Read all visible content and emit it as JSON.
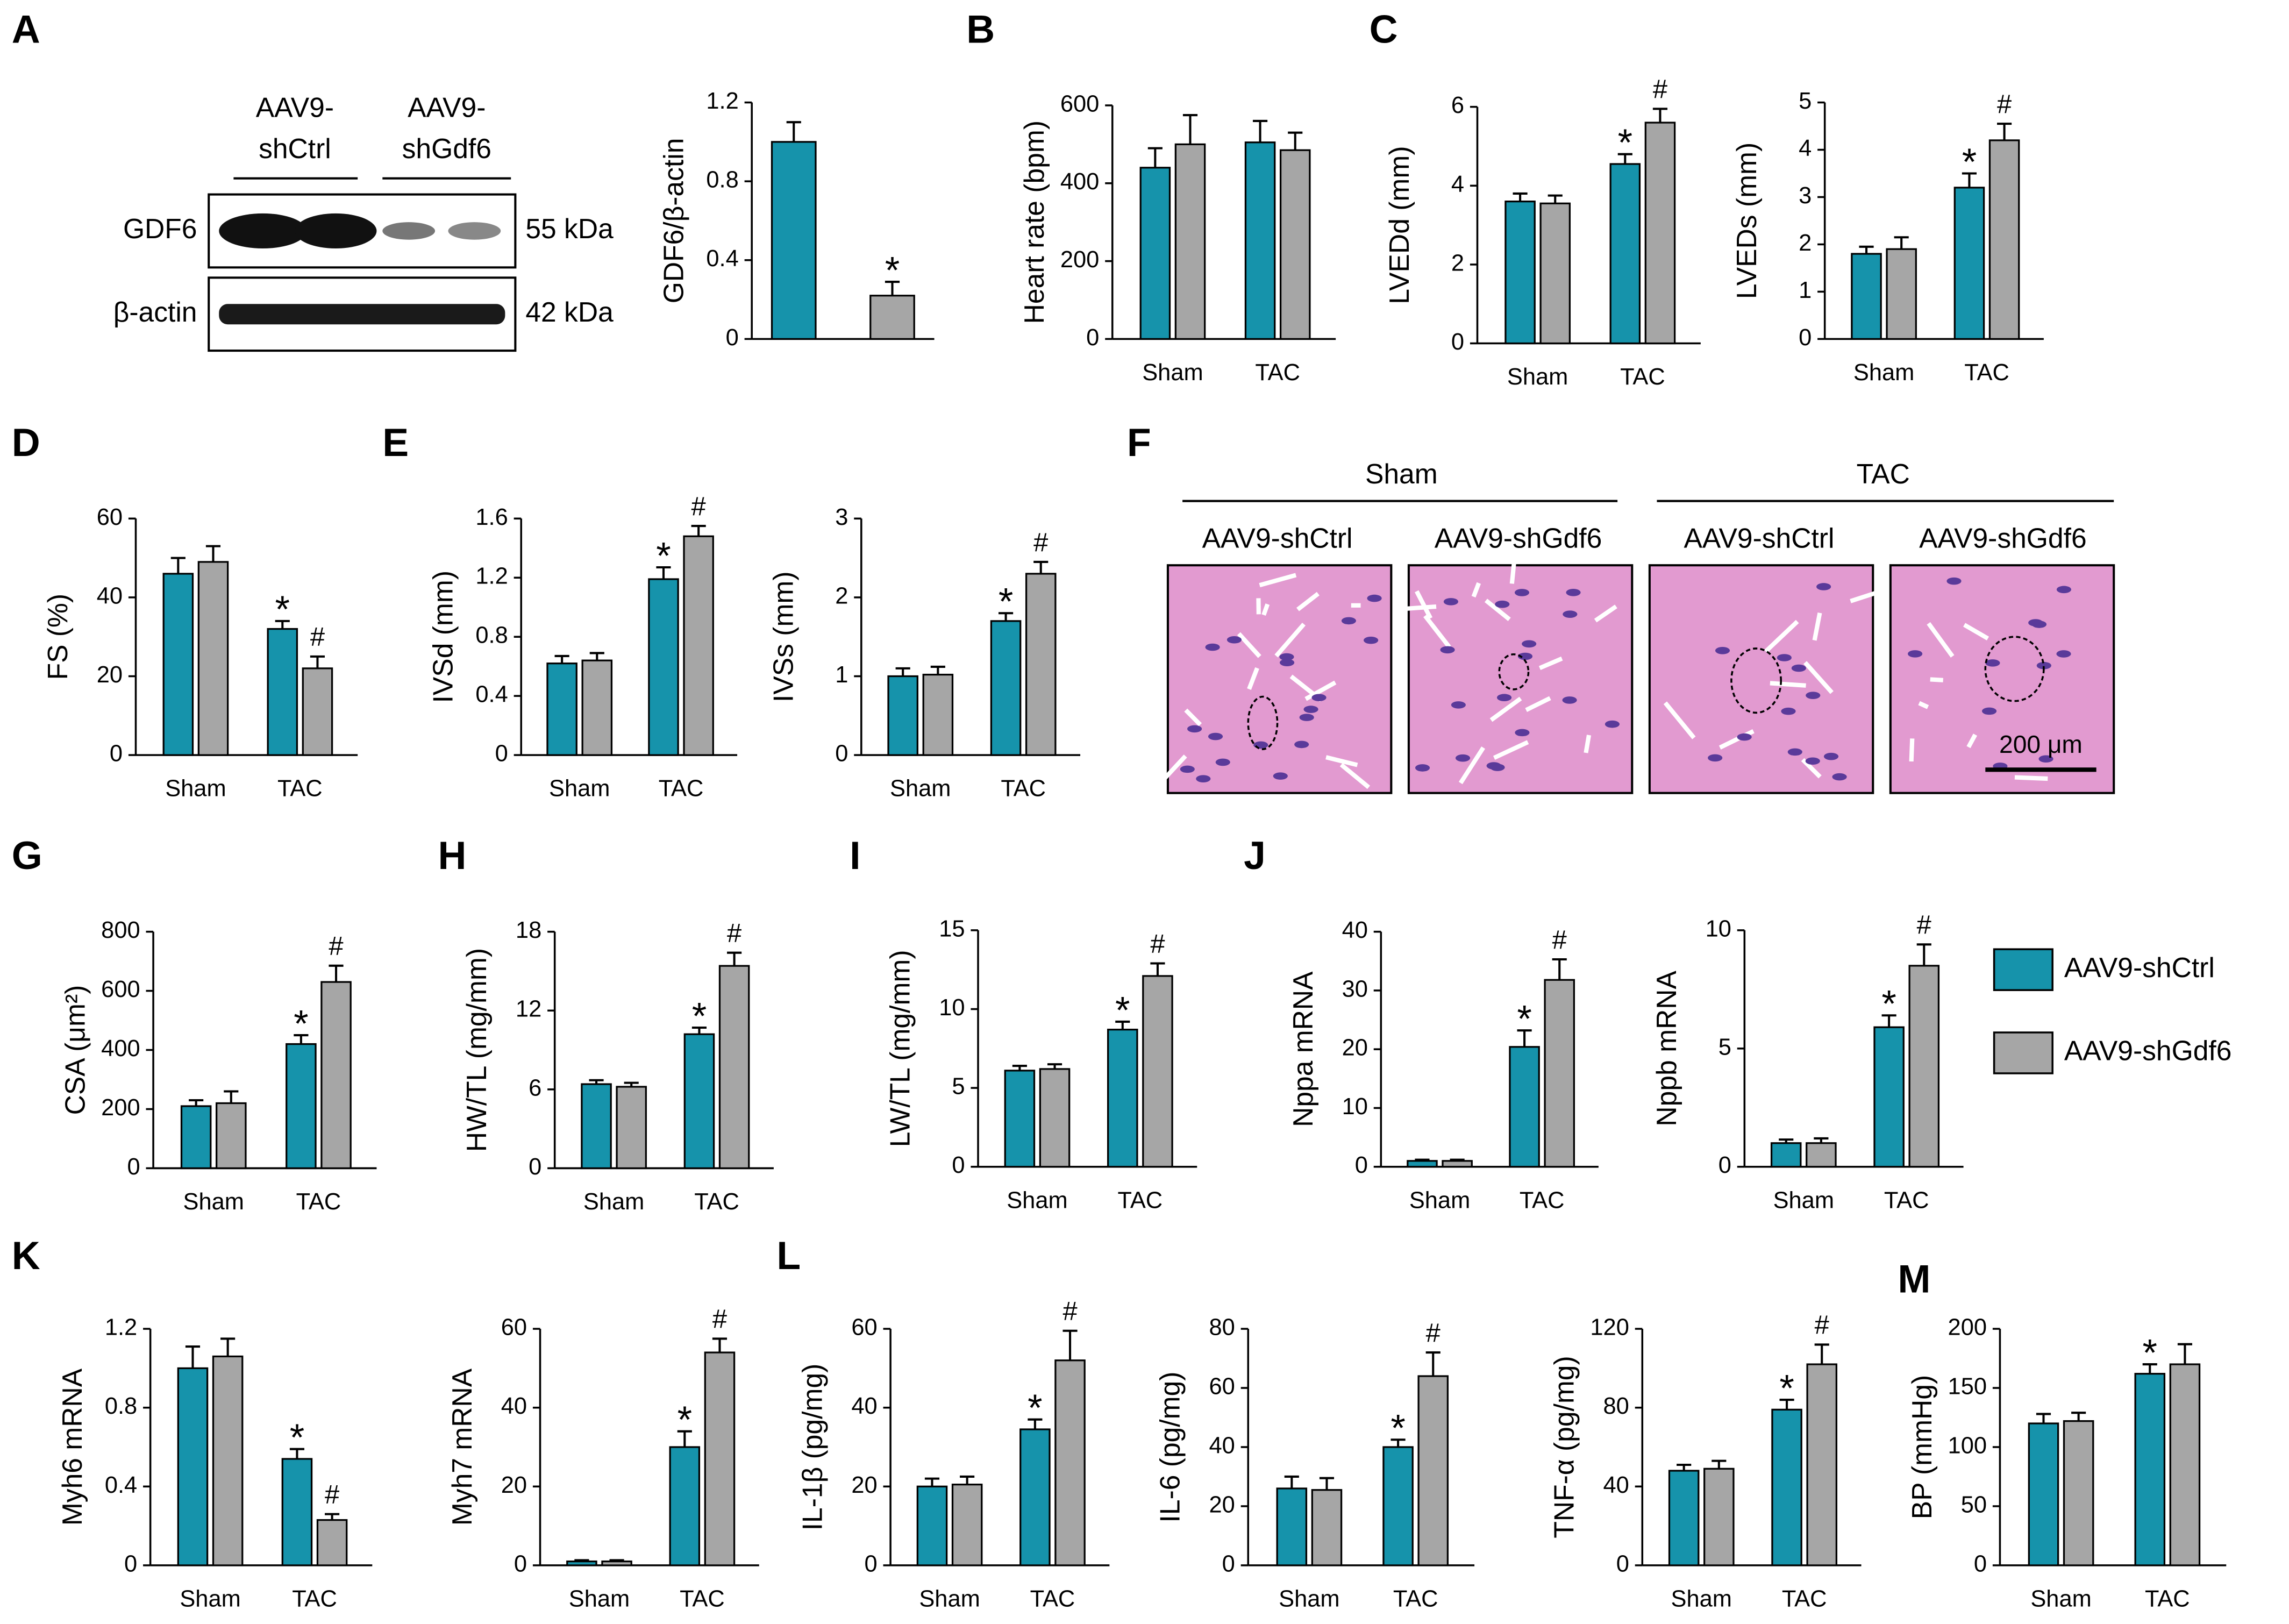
{
  "panels": [
    "A",
    "B",
    "C",
    "D",
    "E",
    "F",
    "G",
    "H",
    "I",
    "J",
    "K",
    "L",
    "M"
  ],
  "legend": [
    {
      "name": "AAV9-shCtrl",
      "color": "#1693ab"
    },
    {
      "name": "AAV9-shGdf6",
      "color": "#a6a6a6"
    }
  ],
  "blot": {
    "groups": [
      [
        "AAV9-",
        "shCtrl"
      ],
      [
        "AAV9-",
        "shGdf6"
      ]
    ],
    "rows": [
      {
        "protein": "GDF6",
        "size": "55 kDa"
      },
      {
        "protein": "β-actin",
        "size": "42 kDa"
      }
    ]
  },
  "histology": {
    "groups": [
      "Sham",
      "TAC"
    ],
    "images": [
      "AAV9-shCtrl",
      "AAV9-shGdf6",
      "AAV9-shCtrl",
      "AAV9-shGdf6"
    ],
    "scale_bar": "200 μm"
  },
  "chart_data": [
    {
      "type": "bar",
      "ylabel": "GDF6/β-actin",
      "categories": [
        null
      ],
      "ylim": [
        0,
        1.2
      ],
      "yticks": [
        0,
        0.4,
        0.8,
        1.2
      ],
      "series": [
        {
          "values": [
            1.0
          ],
          "errors": [
            0.1
          ],
          "annotations": [
            null
          ]
        },
        {
          "values": [
            0.22
          ],
          "errors": [
            0.07
          ],
          "annotations": [
            "*"
          ]
        }
      ]
    },
    {
      "type": "bar",
      "ylabel": "Heart rate (bpm)",
      "categories": [
        "Sham",
        "TAC"
      ],
      "ylim": [
        0,
        600
      ],
      "yticks": [
        0,
        200,
        400,
        600
      ],
      "series": [
        {
          "values": [
            440,
            505
          ],
          "errors": [
            50,
            55
          ],
          "annotations": [
            null,
            null
          ]
        },
        {
          "values": [
            500,
            485
          ],
          "errors": [
            75,
            45
          ],
          "annotations": [
            null,
            null
          ]
        }
      ]
    },
    {
      "type": "bar",
      "ylabel": "LVEDd (mm)",
      "categories": [
        "Sham",
        "TAC"
      ],
      "ylim": [
        0,
        6
      ],
      "yticks": [
        0,
        2,
        4,
        6
      ],
      "series": [
        {
          "values": [
            3.6,
            4.55
          ],
          "errors": [
            0.2,
            0.25
          ],
          "annotations": [
            null,
            "*"
          ]
        },
        {
          "values": [
            3.55,
            5.6
          ],
          "errors": [
            0.2,
            0.35
          ],
          "annotations": [
            null,
            "#"
          ]
        }
      ]
    },
    {
      "type": "bar",
      "ylabel": "LVEDs (mm)",
      "categories": [
        "Sham",
        "TAC"
      ],
      "ylim": [
        0,
        5
      ],
      "yticks": [
        0,
        1,
        2,
        3,
        4,
        5
      ],
      "series": [
        {
          "values": [
            1.8,
            3.2
          ],
          "errors": [
            0.15,
            0.3
          ],
          "annotations": [
            null,
            "*"
          ]
        },
        {
          "values": [
            1.9,
            4.2
          ],
          "errors": [
            0.25,
            0.35
          ],
          "annotations": [
            null,
            "#"
          ]
        }
      ]
    },
    {
      "type": "bar",
      "ylabel": "FS (%)",
      "categories": [
        "Sham",
        "TAC"
      ],
      "ylim": [
        0,
        60
      ],
      "yticks": [
        0,
        20,
        40,
        60
      ],
      "series": [
        {
          "values": [
            46,
            32
          ],
          "errors": [
            4,
            2
          ],
          "annotations": [
            null,
            "*"
          ]
        },
        {
          "values": [
            49,
            22
          ],
          "errors": [
            4,
            3
          ],
          "annotations": [
            null,
            "#"
          ]
        }
      ]
    },
    {
      "type": "bar",
      "ylabel": "IVSd (mm)",
      "categories": [
        "Sham",
        "TAC"
      ],
      "ylim": [
        0,
        1.6
      ],
      "yticks": [
        0,
        0.4,
        0.8,
        1.2,
        1.6
      ],
      "series": [
        {
          "values": [
            0.62,
            1.19
          ],
          "errors": [
            0.05,
            0.08
          ],
          "annotations": [
            null,
            "*"
          ]
        },
        {
          "values": [
            0.64,
            1.48
          ],
          "errors": [
            0.05,
            0.07
          ],
          "annotations": [
            null,
            "#"
          ]
        }
      ]
    },
    {
      "type": "bar",
      "ylabel": "IVSs (mm)",
      "categories": [
        "Sham",
        "TAC"
      ],
      "ylim": [
        0,
        3
      ],
      "yticks": [
        0,
        1,
        2,
        3
      ],
      "series": [
        {
          "values": [
            1.0,
            1.7
          ],
          "errors": [
            0.1,
            0.1
          ],
          "annotations": [
            null,
            "*"
          ]
        },
        {
          "values": [
            1.02,
            2.3
          ],
          "errors": [
            0.1,
            0.15
          ],
          "annotations": [
            null,
            "#"
          ]
        }
      ]
    },
    {
      "type": "bar",
      "ylabel": "CSA (μm²)",
      "categories": [
        "Sham",
        "TAC"
      ],
      "ylim": [
        0,
        800
      ],
      "yticks": [
        0,
        200,
        400,
        600,
        800
      ],
      "series": [
        {
          "values": [
            210,
            420
          ],
          "errors": [
            20,
            30
          ],
          "annotations": [
            null,
            "*"
          ]
        },
        {
          "values": [
            220,
            630
          ],
          "errors": [
            40,
            55
          ],
          "annotations": [
            null,
            "#"
          ]
        }
      ]
    },
    {
      "type": "bar",
      "ylabel": "HW/TL (mg/mm)",
      "categories": [
        "Sham",
        "TAC"
      ],
      "ylim": [
        0,
        18
      ],
      "yticks": [
        0,
        6,
        12,
        18
      ],
      "series": [
        {
          "values": [
            6.4,
            10.2
          ],
          "errors": [
            0.3,
            0.5
          ],
          "annotations": [
            null,
            "*"
          ]
        },
        {
          "values": [
            6.2,
            15.4
          ],
          "errors": [
            0.3,
            1.0
          ],
          "annotations": [
            null,
            "#"
          ]
        }
      ]
    },
    {
      "type": "bar",
      "ylabel": "LW/TL (mg/mm)",
      "categories": [
        "Sham",
        "TAC"
      ],
      "ylim": [
        0,
        15
      ],
      "yticks": [
        0,
        5,
        10,
        15
      ],
      "series": [
        {
          "values": [
            6.1,
            8.7
          ],
          "errors": [
            0.3,
            0.5
          ],
          "annotations": [
            null,
            "*"
          ]
        },
        {
          "values": [
            6.2,
            12.1
          ],
          "errors": [
            0.3,
            0.8
          ],
          "annotations": [
            null,
            "#"
          ]
        }
      ]
    },
    {
      "type": "bar",
      "ylabel": "Nppa mRNA",
      "categories": [
        "Sham",
        "TAC"
      ],
      "ylim": [
        0,
        40
      ],
      "yticks": [
        0,
        10,
        20,
        30,
        40
      ],
      "series": [
        {
          "values": [
            1,
            20.4
          ],
          "errors": [
            0.2,
            2.8
          ],
          "annotations": [
            null,
            "*"
          ]
        },
        {
          "values": [
            1,
            31.8
          ],
          "errors": [
            0.2,
            3.5
          ],
          "annotations": [
            null,
            "#"
          ]
        }
      ]
    },
    {
      "type": "bar",
      "ylabel": "Nppb mRNA",
      "categories": [
        "Sham",
        "TAC"
      ],
      "ylim": [
        0,
        10
      ],
      "yticks": [
        0,
        5,
        10
      ],
      "series": [
        {
          "values": [
            1,
            5.9
          ],
          "errors": [
            0.15,
            0.5
          ],
          "annotations": [
            null,
            "*"
          ]
        },
        {
          "values": [
            1,
            8.5
          ],
          "errors": [
            0.2,
            0.9
          ],
          "annotations": [
            null,
            "#"
          ]
        }
      ]
    },
    {
      "type": "bar",
      "ylabel": "Myh6 mRNA",
      "categories": [
        "Sham",
        "TAC"
      ],
      "ylim": [
        0,
        1.2
      ],
      "yticks": [
        0,
        0.4,
        0.8,
        1.2
      ],
      "series": [
        {
          "values": [
            1.0,
            0.54
          ],
          "errors": [
            0.11,
            0.05
          ],
          "annotations": [
            null,
            "*"
          ]
        },
        {
          "values": [
            1.06,
            0.23
          ],
          "errors": [
            0.09,
            0.03
          ],
          "annotations": [
            null,
            "#"
          ]
        }
      ]
    },
    {
      "type": "bar",
      "ylabel": "Myh7 mRNA",
      "categories": [
        "Sham",
        "TAC"
      ],
      "ylim": [
        0,
        60
      ],
      "yticks": [
        0,
        20,
        40,
        60
      ],
      "series": [
        {
          "values": [
            1,
            30
          ],
          "errors": [
            0.3,
            4
          ],
          "annotations": [
            null,
            "*"
          ]
        },
        {
          "values": [
            1,
            54
          ],
          "errors": [
            0.3,
            3.5
          ],
          "annotations": [
            null,
            "#"
          ]
        }
      ]
    },
    {
      "type": "bar",
      "ylabel": "IL-1β (pg/mg)",
      "categories": [
        "Sham",
        "TAC"
      ],
      "ylim": [
        0,
        60
      ],
      "yticks": [
        0,
        20,
        40,
        60
      ],
      "series": [
        {
          "values": [
            20,
            34.5
          ],
          "errors": [
            2,
            2.5
          ],
          "annotations": [
            null,
            "*"
          ]
        },
        {
          "values": [
            20.5,
            52
          ],
          "errors": [
            2,
            7.5
          ],
          "annotations": [
            null,
            "#"
          ]
        }
      ]
    },
    {
      "type": "bar",
      "ylabel": "IL-6 (pg/mg)",
      "categories": [
        "Sham",
        "TAC"
      ],
      "ylim": [
        0,
        80
      ],
      "yticks": [
        0,
        20,
        40,
        60,
        80
      ],
      "series": [
        {
          "values": [
            26,
            40
          ],
          "errors": [
            4,
            2.5
          ],
          "annotations": [
            null,
            "*"
          ]
        },
        {
          "values": [
            25.5,
            64
          ],
          "errors": [
            4,
            8
          ],
          "annotations": [
            null,
            "#"
          ]
        }
      ]
    },
    {
      "type": "bar",
      "ylabel": "TNF-α (pg/mg)",
      "categories": [
        "Sham",
        "TAC"
      ],
      "ylim": [
        0,
        120
      ],
      "yticks": [
        0,
        40,
        80,
        120
      ],
      "series": [
        {
          "values": [
            48,
            79
          ],
          "errors": [
            3,
            5
          ],
          "annotations": [
            null,
            "*"
          ]
        },
        {
          "values": [
            49,
            102
          ],
          "errors": [
            4,
            10
          ],
          "annotations": [
            null,
            "#"
          ]
        }
      ]
    },
    {
      "type": "bar",
      "ylabel": "BP (mmHg)",
      "categories": [
        "Sham",
        "TAC"
      ],
      "ylim": [
        0,
        200
      ],
      "yticks": [
        0,
        50,
        100,
        150,
        200
      ],
      "series": [
        {
          "values": [
            120,
            162
          ],
          "errors": [
            8,
            8
          ],
          "annotations": [
            null,
            "*"
          ]
        },
        {
          "values": [
            122,
            170
          ],
          "errors": [
            7,
            17
          ],
          "annotations": [
            null,
            null
          ]
        }
      ]
    }
  ]
}
